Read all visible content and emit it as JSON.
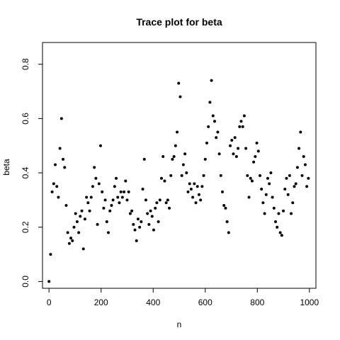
{
  "chart_data": {
    "type": "scatter",
    "title": "Trace plot for beta",
    "xlabel": "n",
    "ylabel": "beta",
    "xlim": [
      -25,
      1025
    ],
    "ylim": [
      -0.025,
      0.88
    ],
    "xticks": [
      0,
      200,
      400,
      600,
      800,
      1000
    ],
    "yticks": [
      0.0,
      0.2,
      0.4,
      0.6,
      0.8
    ],
    "xtick_labels": [
      "0",
      "200",
      "400",
      "600",
      "800",
      "1000"
    ],
    "ytick_labels": [
      "0.0",
      "0.2",
      "0.4",
      "0.6",
      "0.8"
    ],
    "grid": false,
    "marker_color": "#000000",
    "series": [
      {
        "x": [
          0,
          6,
          12,
          18,
          24,
          30,
          36,
          42,
          48,
          54,
          60,
          66,
          72,
          78,
          84,
          90,
          96,
          102,
          108,
          114,
          120,
          126,
          132,
          138,
          144,
          150,
          156,
          162,
          168,
          174,
          180,
          186,
          192,
          198,
          204,
          210,
          216,
          222,
          228,
          234,
          240,
          246,
          252,
          258,
          264,
          270,
          276,
          282,
          288,
          294,
          300,
          306,
          312,
          318,
          324,
          330,
          336,
          342,
          348,
          354,
          360,
          366,
          372,
          378,
          384,
          390,
          396,
          402,
          408,
          414,
          420,
          426,
          432,
          438,
          444,
          450,
          456,
          462,
          468,
          474,
          480,
          486,
          492,
          498,
          504,
          510,
          516,
          522,
          528,
          534,
          540,
          546,
          552,
          558,
          564,
          570,
          576,
          582,
          588,
          594,
          600,
          606,
          612,
          618,
          624,
          630,
          636,
          642,
          648,
          654,
          660,
          666,
          672,
          678,
          684,
          690,
          696,
          702,
          708,
          714,
          720,
          726,
          732,
          738,
          744,
          750,
          756,
          762,
          768,
          774,
          780,
          786,
          792,
          798,
          804,
          810,
          816,
          822,
          828,
          834,
          840,
          846,
          852,
          858,
          864,
          870,
          876,
          882,
          888,
          894,
          900,
          906,
          912,
          918,
          924,
          930,
          936,
          942,
          948,
          954,
          960,
          966,
          972,
          978,
          984,
          990,
          996
        ],
        "y": [
          0.0,
          0.1,
          0.33,
          0.36,
          0.43,
          0.35,
          0.31,
          0.49,
          0.6,
          0.45,
          0.42,
          0.28,
          0.18,
          0.14,
          0.16,
          0.15,
          0.2,
          0.25,
          0.22,
          0.18,
          0.24,
          0.26,
          0.12,
          0.23,
          0.31,
          0.29,
          0.26,
          0.31,
          0.35,
          0.42,
          0.38,
          0.21,
          0.36,
          0.5,
          0.33,
          0.27,
          0.3,
          0.22,
          0.18,
          0.26,
          0.28,
          0.3,
          0.35,
          0.38,
          0.31,
          0.29,
          0.33,
          0.31,
          0.33,
          0.37,
          0.3,
          0.33,
          0.25,
          0.26,
          0.21,
          0.19,
          0.15,
          0.23,
          0.2,
          0.22,
          0.34,
          0.45,
          0.3,
          0.25,
          0.21,
          0.26,
          0.24,
          0.19,
          0.27,
          0.29,
          0.22,
          0.3,
          0.38,
          0.46,
          0.37,
          0.29,
          0.3,
          0.27,
          0.39,
          0.45,
          0.46,
          0.5,
          0.55,
          0.73,
          0.68,
          0.39,
          0.43,
          0.47,
          0.4,
          0.33,
          0.36,
          0.34,
          0.31,
          0.36,
          0.29,
          0.35,
          0.32,
          0.3,
          0.35,
          0.39,
          0.45,
          0.51,
          0.57,
          0.66,
          0.74,
          0.61,
          0.59,
          0.53,
          0.55,
          0.47,
          0.39,
          0.33,
          0.28,
          0.27,
          0.22,
          0.18,
          0.5,
          0.52,
          0.47,
          0.53,
          0.46,
          0.49,
          0.57,
          0.59,
          0.57,
          0.61,
          0.49,
          0.39,
          0.31,
          0.38,
          0.37,
          0.44,
          0.46,
          0.51,
          0.48,
          0.39,
          0.34,
          0.29,
          0.25,
          0.32,
          0.38,
          0.36,
          0.4,
          0.31,
          0.27,
          0.22,
          0.2,
          0.25,
          0.18,
          0.17,
          0.26,
          0.34,
          0.38,
          0.32,
          0.39,
          0.25,
          0.29,
          0.35,
          0.36,
          0.42,
          0.49,
          0.55,
          0.39,
          0.46,
          0.43,
          0.35,
          0.38
        ]
      }
    ]
  }
}
